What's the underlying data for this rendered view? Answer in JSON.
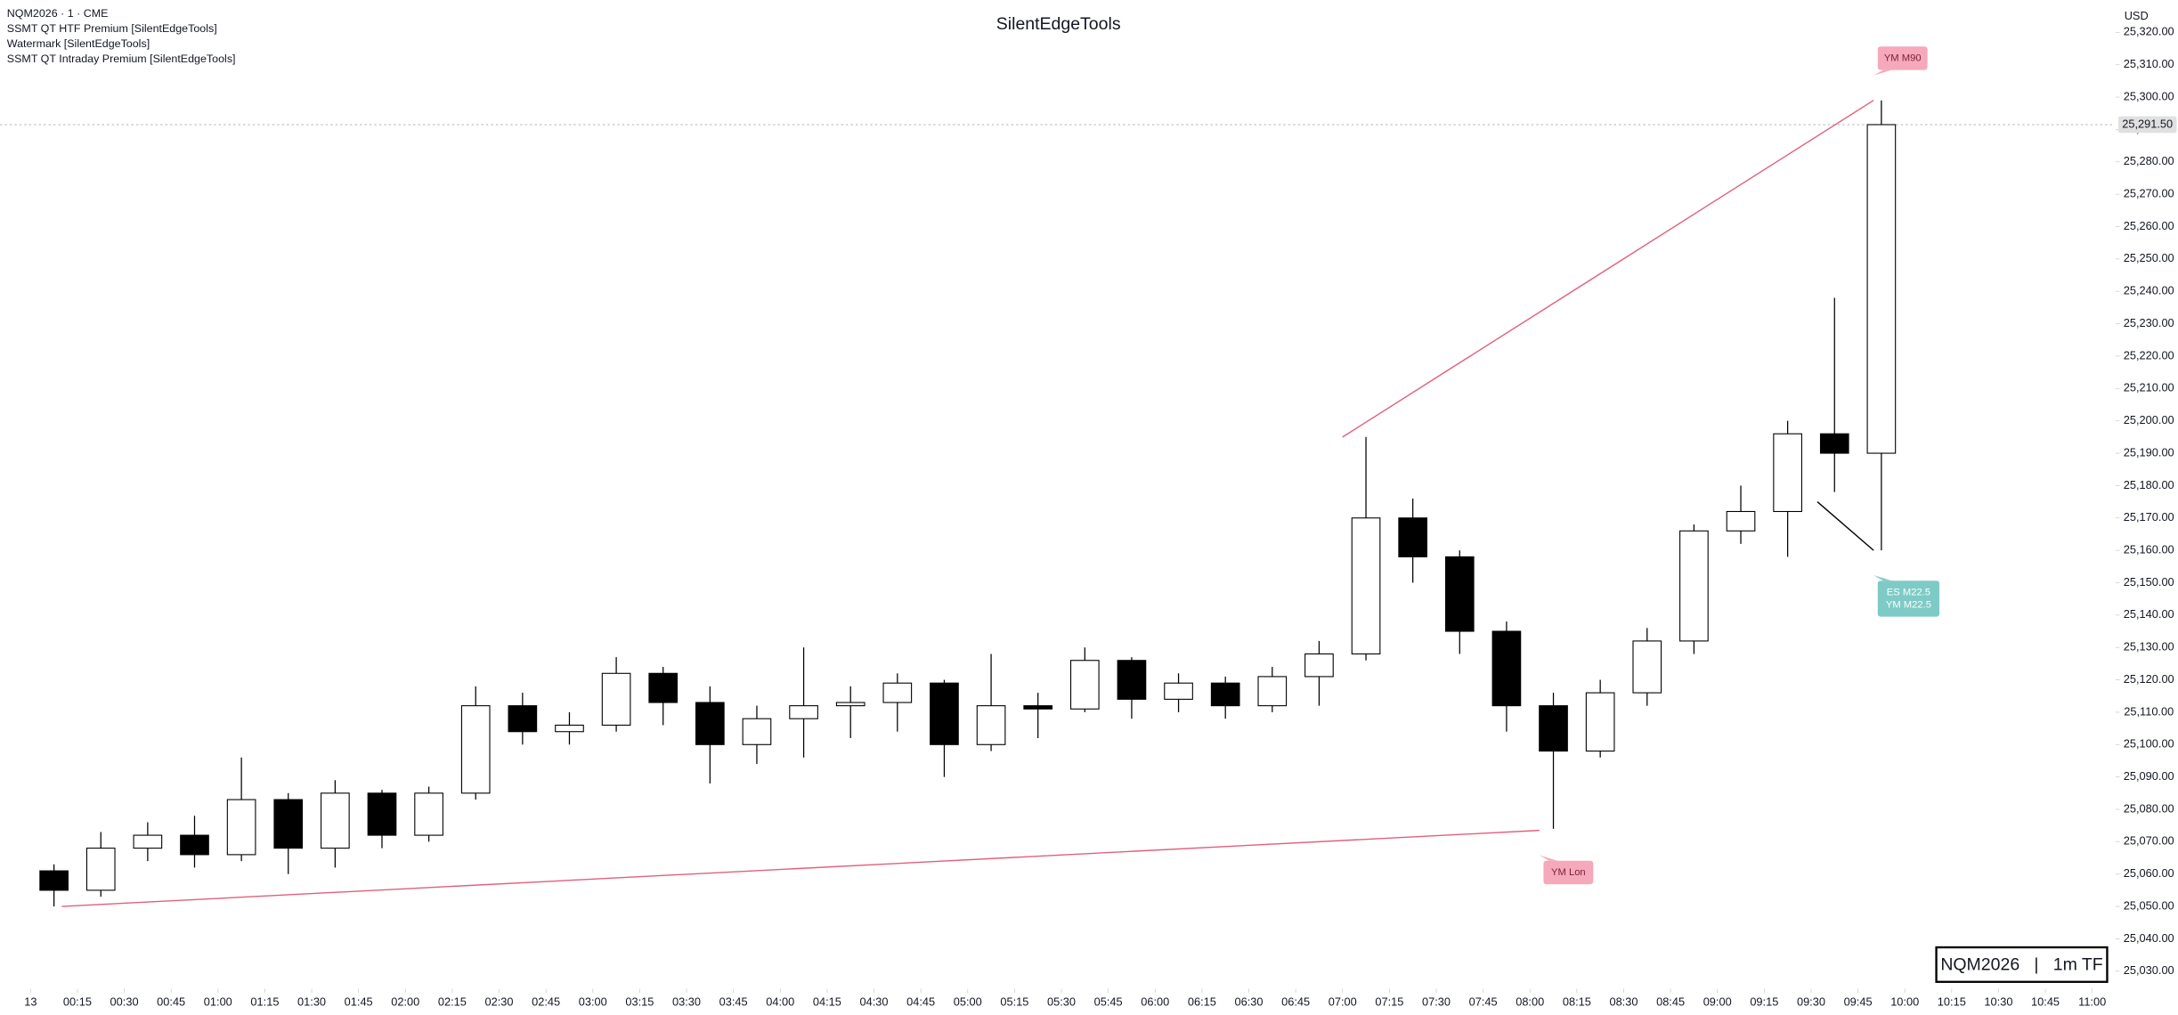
{
  "chart_data": {
    "type": "candlestick",
    "title": "SilentEdgeTools",
    "legend_lines": [
      "NQM2026 · 1 · CME",
      "SSMT QT HTF Premium [SilentEdgeTools]",
      "Watermark [SilentEdgeTools]",
      "SSMT QT Intraday Premium [SilentEdgeTools]"
    ],
    "currency": "USD",
    "watermark": "NQM2026   |   1m TF",
    "x": [
      "00:00",
      "00:15",
      "00:30",
      "00:45",
      "01:00",
      "01:15",
      "01:30",
      "01:45",
      "02:00",
      "02:15",
      "02:30",
      "02:45",
      "03:00",
      "03:15",
      "03:30",
      "03:45",
      "04:00",
      "04:15",
      "04:30",
      "04:45",
      "05:00",
      "05:15",
      "05:30",
      "05:45",
      "06:00",
      "06:15",
      "06:30",
      "06:45",
      "07:00",
      "07:15",
      "07:30",
      "07:45",
      "08:00",
      "08:15",
      "08:30",
      "08:45",
      "09:00",
      "09:15",
      "09:30",
      "09:45"
    ],
    "open": [
      25061,
      25055,
      25068,
      25072,
      25066,
      25083,
      25068,
      25085,
      25072,
      25085,
      25112,
      25104,
      25106,
      25122,
      25113,
      25100,
      25108,
      25112,
      25113,
      25119,
      25100,
      25112,
      25111,
      25126,
      25114,
      25119,
      25112,
      25121,
      25128,
      25170,
      25158,
      25135,
      25112,
      25098,
      25116,
      25132,
      25166,
      25172,
      25196,
      25190
    ],
    "high": [
      25063,
      25073,
      25076,
      25078,
      25096,
      25085,
      25089,
      25086,
      25087,
      25118,
      25116,
      25110,
      25127,
      25124,
      25118,
      25112,
      25130,
      25118,
      25122,
      25120,
      25128,
      25116,
      25130,
      25127,
      25122,
      25121,
      25124,
      25132,
      25195,
      25176,
      25160,
      25138,
      25116,
      25120,
      25136,
      25168,
      25180,
      25200,
      25238,
      25299
    ],
    "low": [
      25050,
      25053,
      25064,
      25062,
      25064,
      25060,
      25062,
      25068,
      25070,
      25083,
      25100,
      25100,
      25104,
      25106,
      25088,
      25094,
      25096,
      25102,
      25104,
      25090,
      25098,
      25102,
      25110,
      25108,
      25110,
      25108,
      25110,
      25112,
      25126,
      25150,
      25128,
      25104,
      25074,
      25096,
      25112,
      25128,
      25162,
      25158,
      25178,
      25160
    ],
    "close": [
      25055,
      25068,
      25072,
      25066,
      25083,
      25068,
      25085,
      25072,
      25085,
      25112,
      25104,
      25106,
      25122,
      25113,
      25100,
      25108,
      25112,
      25113,
      25119,
      25100,
      25112,
      25111,
      25126,
      25114,
      25119,
      25112,
      25121,
      25128,
      25170,
      25158,
      25135,
      25112,
      25098,
      25116,
      25132,
      25166,
      25172,
      25196,
      25190,
      25291.5
    ],
    "up_color": "#ffffff",
    "down_color": "#000000",
    "wick_color": "#000000",
    "xlim": [
      "00:00",
      "11:07"
    ],
    "xticks": [
      {
        "value": "00:00",
        "label": "13"
      },
      "00:15",
      "00:30",
      "00:45",
      "01:00",
      "01:15",
      "01:30",
      "01:45",
      "02:00",
      "02:15",
      "02:30",
      "02:45",
      "03:00",
      "03:15",
      "03:30",
      "03:45",
      "04:00",
      "04:15",
      "04:30",
      "04:45",
      "05:00",
      "05:15",
      "05:30",
      "05:45",
      "06:00",
      "06:15",
      "06:30",
      "06:45",
      "07:00",
      "07:15",
      "07:30",
      "07:45",
      "08:00",
      "08:15",
      "08:30",
      "08:45",
      "09:00",
      "09:15",
      "09:30",
      "09:45",
      "10:00",
      "10:15",
      "10:30",
      "10:45",
      "11:00"
    ],
    "ylim": [
      25025,
      25330
    ],
    "yticks": [
      {
        "value": 25030,
        "label": "25,030.00"
      },
      {
        "value": 25040,
        "label": "25,040.00"
      },
      {
        "value": 25050,
        "label": "25,050.00"
      },
      {
        "value": 25060,
        "label": "25,060.00"
      },
      {
        "value": 25070,
        "label": "25,070.00"
      },
      {
        "value": 25080,
        "label": "25,080.00"
      },
      {
        "value": 25090,
        "label": "25,090.00"
      },
      {
        "value": 25100,
        "label": "25,100.00"
      },
      {
        "value": 25110,
        "label": "25,110.00"
      },
      {
        "value": 25120,
        "label": "25,120.00"
      },
      {
        "value": 25130,
        "label": "25,130.00"
      },
      {
        "value": 25140,
        "label": "25,140.00"
      },
      {
        "value": 25150,
        "label": "25,150.00"
      },
      {
        "value": 25160,
        "label": "25,160.00"
      },
      {
        "value": 25170,
        "label": "25,170.00"
      },
      {
        "value": 25180,
        "label": "25,180.00"
      },
      {
        "value": 25190,
        "label": "25,190.00"
      },
      {
        "value": 25200,
        "label": "25,200.00"
      },
      {
        "value": 25210,
        "label": "25,210.00"
      },
      {
        "value": 25220,
        "label": "25,220.00"
      },
      {
        "value": 25230,
        "label": "25,230.00"
      },
      {
        "value": 25240,
        "label": "25,240.00"
      },
      {
        "value": 25250,
        "label": "25,250.00"
      },
      {
        "value": 25260,
        "label": "25,260.00"
      },
      {
        "value": 25270,
        "label": "25,270.00"
      },
      {
        "value": 25280,
        "label": "25,280.00"
      },
      {
        "value": 25290,
        "label": "25,290.00"
      },
      {
        "value": 25300,
        "label": "25,300.00"
      },
      {
        "value": 25310,
        "label": "25,310.00"
      },
      {
        "value": 25320,
        "label": "25,320.00"
      }
    ],
    "last_price": {
      "value": 25291.5,
      "label": "25,291.50"
    },
    "annotations": [
      {
        "lines": [
          "YM M90"
        ],
        "label_side": "above",
        "line_color": "#e0607e",
        "fill": "#f5a9bb",
        "text_color": "#7a1f35",
        "x": [
          "07:00",
          "09:50"
        ],
        "y": [
          25195,
          25299
        ]
      },
      {
        "lines": [
          "YM Lon"
        ],
        "label_side": "below",
        "line_color": "#e0607e",
        "fill": "#f5a9bb",
        "text_color": "#7a1f35",
        "x": [
          "00:10",
          "08:03"
        ],
        "y": [
          25050,
          25073.5
        ]
      },
      {
        "lines": [
          "ES M22.5",
          "YM M22.5"
        ],
        "label_side": "below",
        "line_color": "#000000",
        "fill": "#7ecac6",
        "text_color": "#ffffff",
        "x": [
          "09:32",
          "09:50"
        ],
        "y": [
          25175,
          25160
        ]
      }
    ]
  }
}
